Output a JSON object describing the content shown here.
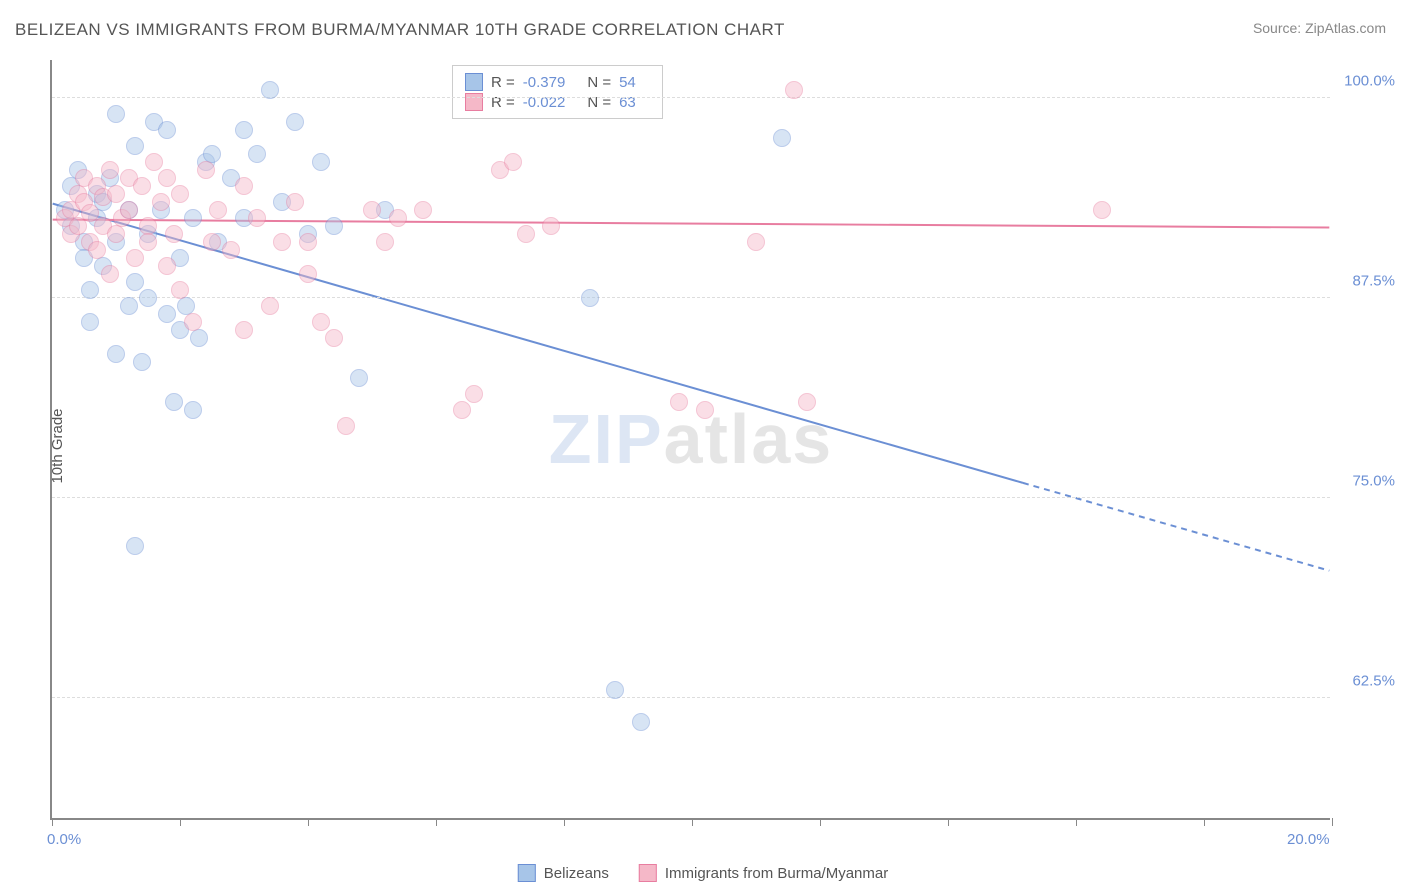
{
  "header": {
    "title": "BELIZEAN VS IMMIGRANTS FROM BURMA/MYANMAR 10TH GRADE CORRELATION CHART",
    "source_label": "Source:",
    "source_name": "ZipAtlas.com"
  },
  "axes": {
    "ylabel": "10th Grade",
    "xlim": [
      0,
      20
    ],
    "ylim": [
      55,
      102.5
    ],
    "yticks": [
      62.5,
      75.0,
      87.5,
      100.0
    ],
    "ytick_labels": [
      "62.5%",
      "75.0%",
      "87.5%",
      "100.0%"
    ],
    "xticks": [
      0,
      2,
      4,
      6,
      8,
      10,
      12,
      14,
      16,
      18,
      20
    ],
    "xtick_labels": {
      "0": "0.0%",
      "20": "20.0%"
    }
  },
  "styling": {
    "axis_color": "#888888",
    "grid_color": "#dddddd",
    "tick_label_color": "#6b8fd4",
    "text_color": "#555555",
    "background": "#ffffff",
    "point_radius": 9,
    "point_opacity": 0.45,
    "line_width": 2
  },
  "watermark": {
    "part1": "ZIP",
    "part2": "atlas"
  },
  "series": [
    {
      "id": "belizeans",
      "label": "Belizeans",
      "color_fill": "#a7c5e8",
      "color_stroke": "#6b8fd4",
      "r_label": "R =",
      "r_value": "-0.379",
      "n_label": "N =",
      "n_value": "54",
      "trend": {
        "x1": 0,
        "y1": 93.5,
        "x2": 15.2,
        "y2": 76.0,
        "dash_after_x": 15.2,
        "dash_x2": 20,
        "dash_y2": 70.5
      },
      "points": [
        [
          0.2,
          93.0
        ],
        [
          0.3,
          94.5
        ],
        [
          0.3,
          92.0
        ],
        [
          0.4,
          95.5
        ],
        [
          0.5,
          91.0
        ],
        [
          0.5,
          90.0
        ],
        [
          0.6,
          88.0
        ],
        [
          0.6,
          86.0
        ],
        [
          0.7,
          94.0
        ],
        [
          0.7,
          92.5
        ],
        [
          0.8,
          93.5
        ],
        [
          0.8,
          89.5
        ],
        [
          0.9,
          95.0
        ],
        [
          1.0,
          91.0
        ],
        [
          1.0,
          99.0
        ],
        [
          1.2,
          87.0
        ],
        [
          1.2,
          93.0
        ],
        [
          1.3,
          97.0
        ],
        [
          1.3,
          72.0
        ],
        [
          1.4,
          83.5
        ],
        [
          1.5,
          91.5
        ],
        [
          1.5,
          87.5
        ],
        [
          1.6,
          98.5
        ],
        [
          1.7,
          93.0
        ],
        [
          1.8,
          86.5
        ],
        [
          1.8,
          98.0
        ],
        [
          1.9,
          81.0
        ],
        [
          2.0,
          90.0
        ],
        [
          2.0,
          85.5
        ],
        [
          2.1,
          87.0
        ],
        [
          2.2,
          92.5
        ],
        [
          2.2,
          80.5
        ],
        [
          2.3,
          85.0
        ],
        [
          2.4,
          96.0
        ],
        [
          2.5,
          96.5
        ],
        [
          2.6,
          91.0
        ],
        [
          2.8,
          95.0
        ],
        [
          3.0,
          98.0
        ],
        [
          3.0,
          92.5
        ],
        [
          3.2,
          96.5
        ],
        [
          3.4,
          100.5
        ],
        [
          3.6,
          93.5
        ],
        [
          3.8,
          98.5
        ],
        [
          4.0,
          91.5
        ],
        [
          4.2,
          96.0
        ],
        [
          4.4,
          92.0
        ],
        [
          4.8,
          82.5
        ],
        [
          5.2,
          93.0
        ],
        [
          8.4,
          87.5
        ],
        [
          8.8,
          63.0
        ],
        [
          9.2,
          61.0
        ],
        [
          11.4,
          97.5
        ],
        [
          1.0,
          84.0
        ],
        [
          1.3,
          88.5
        ]
      ]
    },
    {
      "id": "burma",
      "label": "Immigrants from Burma/Myanmar",
      "color_fill": "#f5b8c8",
      "color_stroke": "#e87da0",
      "r_label": "R =",
      "r_value": "-0.022",
      "n_label": "N =",
      "n_value": "63",
      "trend": {
        "x1": 0,
        "y1": 92.5,
        "x2": 20,
        "y2": 92.0
      },
      "points": [
        [
          0.2,
          92.5
        ],
        [
          0.3,
          93.0
        ],
        [
          0.3,
          91.5
        ],
        [
          0.4,
          94.0
        ],
        [
          0.4,
          92.0
        ],
        [
          0.5,
          93.5
        ],
        [
          0.5,
          95.0
        ],
        [
          0.6,
          91.0
        ],
        [
          0.6,
          92.8
        ],
        [
          0.7,
          94.5
        ],
        [
          0.7,
          90.5
        ],
        [
          0.8,
          92.0
        ],
        [
          0.8,
          93.8
        ],
        [
          0.9,
          89.0
        ],
        [
          0.9,
          95.5
        ],
        [
          1.0,
          91.5
        ],
        [
          1.0,
          94.0
        ],
        [
          1.1,
          92.5
        ],
        [
          1.2,
          95.0
        ],
        [
          1.2,
          93.0
        ],
        [
          1.3,
          90.0
        ],
        [
          1.4,
          94.5
        ],
        [
          1.5,
          92.0
        ],
        [
          1.5,
          91.0
        ],
        [
          1.6,
          96.0
        ],
        [
          1.7,
          93.5
        ],
        [
          1.8,
          89.5
        ],
        [
          1.8,
          95.0
        ],
        [
          1.9,
          91.5
        ],
        [
          2.0,
          88.0
        ],
        [
          2.0,
          94.0
        ],
        [
          2.2,
          86.0
        ],
        [
          2.4,
          95.5
        ],
        [
          2.5,
          91.0
        ],
        [
          2.6,
          93.0
        ],
        [
          2.8,
          90.5
        ],
        [
          3.0,
          85.5
        ],
        [
          3.0,
          94.5
        ],
        [
          3.2,
          92.5
        ],
        [
          3.4,
          87.0
        ],
        [
          3.6,
          91.0
        ],
        [
          3.8,
          93.5
        ],
        [
          4.0,
          89.0
        ],
        [
          4.0,
          91.0
        ],
        [
          4.2,
          86.0
        ],
        [
          4.4,
          85.0
        ],
        [
          4.6,
          79.5
        ],
        [
          5.0,
          93.0
        ],
        [
          5.2,
          91.0
        ],
        [
          5.4,
          92.5
        ],
        [
          5.8,
          93.0
        ],
        [
          6.4,
          80.5
        ],
        [
          6.6,
          81.5
        ],
        [
          7.0,
          95.5
        ],
        [
          7.2,
          96.0
        ],
        [
          7.4,
          91.5
        ],
        [
          7.8,
          92.0
        ],
        [
          9.8,
          81.0
        ],
        [
          10.2,
          80.5
        ],
        [
          11.0,
          91.0
        ],
        [
          11.6,
          100.5
        ],
        [
          11.8,
          81.0
        ],
        [
          16.4,
          93.0
        ]
      ]
    }
  ]
}
